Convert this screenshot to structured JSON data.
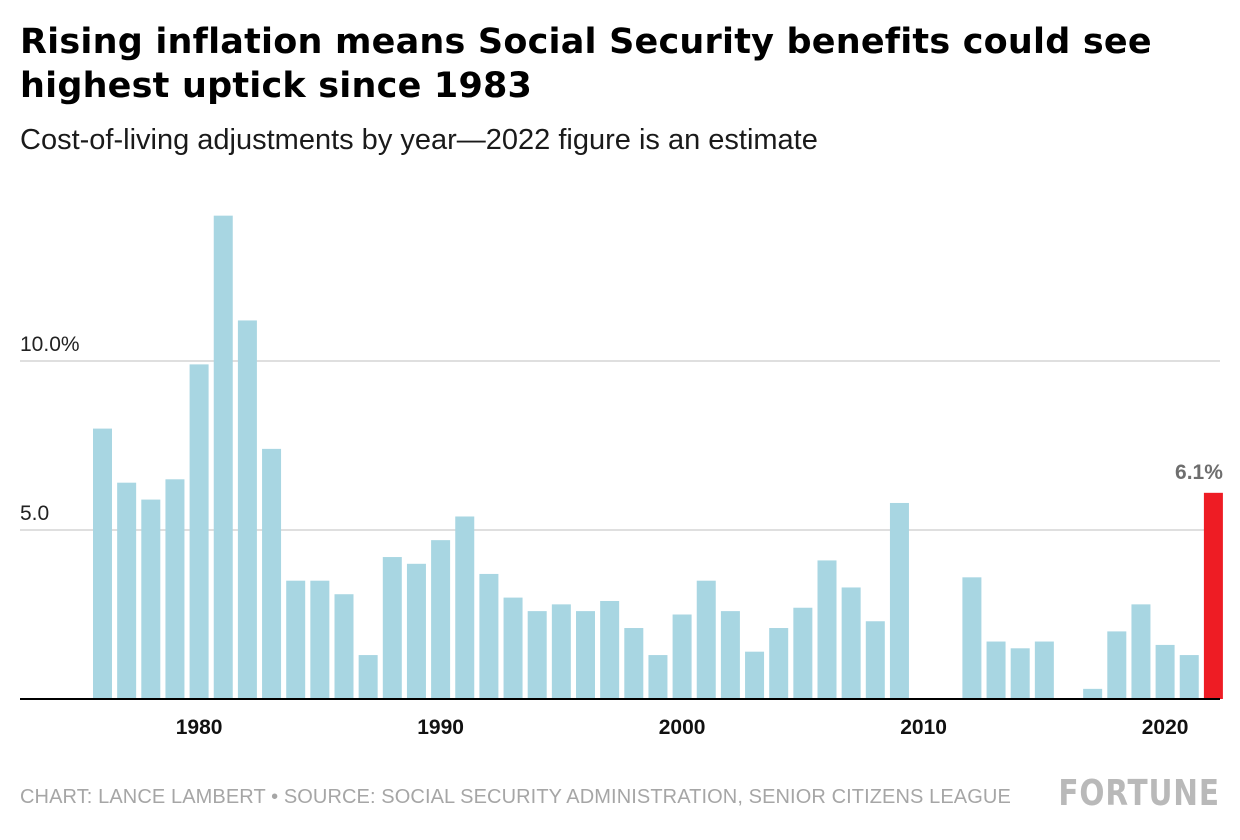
{
  "title": "Rising inflation means Social Security benefits could see highest uptick since 1983",
  "subtitle": "Cost-of-living adjustments by year—2022 figure is an estimate",
  "footer": {
    "credit": "CHART: LANCE LAMBERT • SOURCE: SOCIAL SECURITY ADMINISTRATION, SENIOR CITIZENS LEAGUE",
    "logo": "FORTUNE"
  },
  "colors": {
    "bar": "#a8d6e2",
    "highlight": "#ee1c24",
    "gridline": "#cccccc",
    "baseline": "#000000"
  },
  "chart_data": {
    "type": "bar",
    "title": "Rising inflation means Social Security benefits could see highest uptick since 1983",
    "subtitle": "Cost-of-living adjustments by year—2022 figure is an estimate",
    "xlabel": "",
    "ylabel": "",
    "categories": [
      1976,
      1977,
      1978,
      1979,
      1980,
      1981,
      1982,
      1983,
      1984,
      1985,
      1986,
      1987,
      1988,
      1989,
      1990,
      1991,
      1992,
      1993,
      1994,
      1995,
      1996,
      1997,
      1998,
      1999,
      2000,
      2001,
      2002,
      2003,
      2004,
      2005,
      2006,
      2007,
      2008,
      2009,
      2010,
      2011,
      2012,
      2013,
      2014,
      2015,
      2016,
      2017,
      2018,
      2019,
      2020,
      2021,
      2022
    ],
    "values": [
      8.0,
      6.4,
      5.9,
      6.5,
      9.9,
      14.3,
      11.2,
      7.4,
      3.5,
      3.5,
      3.1,
      1.3,
      4.2,
      4.0,
      4.7,
      5.4,
      3.7,
      3.0,
      2.6,
      2.8,
      2.6,
      2.9,
      2.1,
      1.3,
      2.5,
      3.5,
      2.6,
      1.4,
      2.1,
      2.7,
      4.1,
      3.3,
      2.3,
      5.8,
      0,
      0,
      3.6,
      1.7,
      1.5,
      1.7,
      0,
      0.3,
      2.0,
      2.8,
      1.6,
      1.3,
      6.1
    ],
    "highlight": {
      "category": 2022,
      "label": "6.1%"
    },
    "y_ticks": [
      5,
      10
    ],
    "y_tick_labels": [
      "5.0",
      "10.0%"
    ],
    "x_ticks": [
      1980,
      1990,
      2000,
      2010,
      2020
    ],
    "x_tick_labels": [
      "1980",
      "1990",
      "2000",
      "2010",
      "2020"
    ],
    "ylim": [
      0,
      15
    ],
    "grid": true,
    "legend": "none"
  }
}
